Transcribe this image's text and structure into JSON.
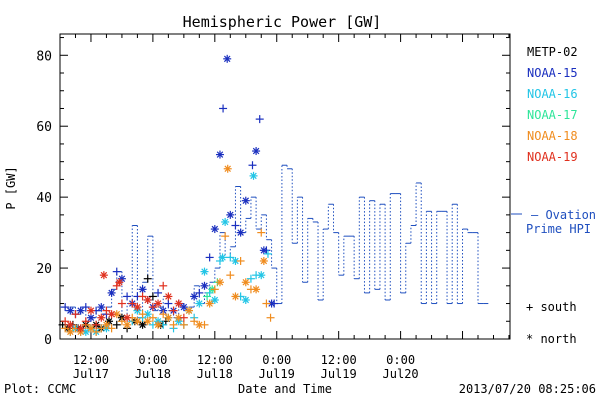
{
  "chart_data": {
    "type": "scatter",
    "title": "Hemispheric Power [GW]",
    "ylabel": "P [GW]",
    "xlabel": "Date and Time",
    "ylim": [
      0,
      86
    ],
    "xlim_hours_from_Jul17_00": [
      6.0,
      93.2
    ],
    "yticks": [
      0,
      20,
      40,
      60,
      80
    ],
    "xticks": [
      {
        "hour": 12,
        "line1": "12:00",
        "line2": "Jul17"
      },
      {
        "hour": 24,
        "line1": "0:00",
        "line2": "Jul18"
      },
      {
        "hour": 36,
        "line1": "12:00",
        "line2": "Jul18"
      },
      {
        "hour": 48,
        "line1": "0:00",
        "line2": "Jul19"
      },
      {
        "hour": 60,
        "line1": "12:00",
        "line2": "Jul19"
      },
      {
        "hour": 72,
        "line1": "0:00",
        "line2": "Jul20"
      }
    ],
    "legend": [
      {
        "name": "METP-02",
        "color": "#000000"
      },
      {
        "name": "NOAA-15",
        "color": "#1a2fbf"
      },
      {
        "name": "NOAA-16",
        "color": "#22c5e6"
      },
      {
        "name": "NOAA-17",
        "color": "#2ee59a"
      },
      {
        "name": "NOAA-18",
        "color": "#f08c1e"
      },
      {
        "name": "NOAA-19",
        "color": "#e0301e"
      }
    ],
    "ovation": {
      "label_line1": "— Ovation",
      "label_line2": "Prime HPI",
      "color": "#1f4fbf",
      "points": [
        [
          6,
          9
        ],
        [
          7,
          8
        ],
        [
          8,
          9
        ],
        [
          9,
          7
        ],
        [
          10,
          9
        ],
        [
          11,
          5
        ],
        [
          12,
          6
        ],
        [
          13,
          8
        ],
        [
          14,
          7
        ],
        [
          15,
          9
        ],
        [
          16,
          14
        ],
        [
          17,
          19
        ],
        [
          18,
          6
        ],
        [
          19,
          10
        ],
        [
          20,
          32
        ],
        [
          21,
          6
        ],
        [
          22,
          16
        ],
        [
          23,
          29
        ],
        [
          24,
          8
        ],
        [
          25,
          9
        ],
        [
          26,
          12
        ],
        [
          27,
          8
        ],
        [
          28,
          6
        ],
        [
          29,
          10
        ],
        [
          30,
          8
        ],
        [
          31,
          9
        ],
        [
          32,
          15
        ],
        [
          33,
          10
        ],
        [
          34,
          13
        ],
        [
          35,
          16
        ],
        [
          36,
          20
        ],
        [
          37,
          30
        ],
        [
          38,
          23
        ],
        [
          39,
          26
        ],
        [
          40,
          43
        ],
        [
          41,
          30
        ],
        [
          42,
          34
        ],
        [
          43,
          40
        ],
        [
          44,
          31
        ],
        [
          45,
          35
        ],
        [
          46,
          28
        ],
        [
          47,
          20
        ],
        [
          48,
          10
        ],
        [
          49,
          49
        ],
        [
          50,
          48
        ],
        [
          51,
          27
        ],
        [
          52,
          40
        ],
        [
          53,
          16
        ],
        [
          54,
          34
        ],
        [
          55,
          33
        ],
        [
          56,
          11
        ],
        [
          57,
          31
        ],
        [
          58,
          38
        ],
        [
          59,
          30
        ],
        [
          60,
          18
        ],
        [
          61,
          29
        ],
        [
          62,
          29
        ],
        [
          63,
          17
        ],
        [
          64,
          40
        ],
        [
          65,
          13
        ],
        [
          66,
          39
        ],
        [
          67,
          14
        ],
        [
          68,
          38
        ],
        [
          69,
          11
        ],
        [
          70,
          41
        ],
        [
          71,
          41
        ],
        [
          72,
          13
        ],
        [
          73,
          27
        ],
        [
          74,
          32
        ],
        [
          75,
          44
        ],
        [
          76,
          10
        ],
        [
          77,
          36
        ],
        [
          78,
          10
        ],
        [
          79,
          36
        ],
        [
          80,
          36
        ],
        [
          81,
          10
        ],
        [
          82,
          38
        ],
        [
          83,
          10
        ],
        [
          84,
          31
        ],
        [
          85,
          30
        ],
        [
          86,
          30
        ],
        [
          87,
          10
        ],
        [
          88,
          10
        ]
      ]
    },
    "series": [
      {
        "name": "METP-02",
        "color": "#000000",
        "points": [
          [
            6.5,
            4,
            "+"
          ],
          [
            7.5,
            3,
            "*"
          ],
          [
            8.5,
            4,
            "+"
          ],
          [
            9.5,
            3,
            "*"
          ],
          [
            11,
            4,
            "*"
          ],
          [
            12,
            3,
            "+"
          ],
          [
            13,
            4,
            "*"
          ],
          [
            14,
            3,
            "*"
          ],
          [
            15.5,
            5,
            "*"
          ],
          [
            17,
            4,
            "+"
          ],
          [
            18,
            6,
            "*"
          ],
          [
            19,
            3,
            "+"
          ],
          [
            20.5,
            5,
            "*"
          ],
          [
            22,
            4,
            "*"
          ],
          [
            23,
            17,
            "+"
          ],
          [
            24,
            12,
            "+"
          ],
          [
            25.5,
            4,
            "*"
          ],
          [
            26.5,
            5,
            "+"
          ]
        ]
      },
      {
        "name": "NOAA-15",
        "color": "#1a2fbf",
        "points": [
          [
            7,
            9,
            "+"
          ],
          [
            8,
            8,
            "*"
          ],
          [
            9,
            7,
            "+"
          ],
          [
            10,
            8,
            "*"
          ],
          [
            11,
            9,
            "+"
          ],
          [
            12,
            6,
            "*"
          ],
          [
            13,
            8,
            "+"
          ],
          [
            14,
            9,
            "*"
          ],
          [
            15,
            7,
            "+"
          ],
          [
            16,
            13,
            "*"
          ],
          [
            17,
            19,
            "+"
          ],
          [
            18,
            17,
            "*"
          ],
          [
            19,
            12,
            "+"
          ],
          [
            20,
            10,
            "*"
          ],
          [
            21,
            12,
            "+"
          ],
          [
            22,
            14,
            "*"
          ],
          [
            23,
            11,
            "+"
          ],
          [
            24,
            9,
            "*"
          ],
          [
            25,
            13,
            "+"
          ],
          [
            26,
            8,
            "*"
          ],
          [
            27,
            10,
            "+"
          ],
          [
            28,
            8,
            "*"
          ],
          [
            29,
            10,
            "+"
          ],
          [
            30,
            9,
            "*"
          ],
          [
            32,
            12,
            "*"
          ],
          [
            33,
            13,
            "+"
          ],
          [
            34,
            15,
            "*"
          ],
          [
            35,
            23,
            "+"
          ],
          [
            36,
            31,
            "*"
          ],
          [
            37,
            52,
            "*"
          ],
          [
            37.6,
            65,
            "+"
          ],
          [
            38.4,
            79,
            "*"
          ],
          [
            39,
            35,
            "*"
          ],
          [
            40,
            32,
            "+"
          ],
          [
            41,
            30,
            "*"
          ],
          [
            42,
            39,
            "*"
          ],
          [
            43.3,
            49,
            "+"
          ],
          [
            44,
            53,
            "*"
          ],
          [
            44.7,
            62,
            "+"
          ],
          [
            45.5,
            25,
            "*"
          ],
          [
            46,
            25,
            "+"
          ],
          [
            47,
            10,
            "*"
          ],
          [
            47.5,
            10,
            "+"
          ]
        ]
      },
      {
        "name": "NOAA-16",
        "color": "#22c5e6",
        "points": [
          [
            8,
            2,
            "+"
          ],
          [
            9,
            3,
            "*"
          ],
          [
            10,
            2,
            "+"
          ],
          [
            11,
            2,
            "*"
          ],
          [
            12,
            3,
            "+"
          ],
          [
            13,
            2,
            "*"
          ],
          [
            14,
            3,
            "+"
          ],
          [
            15,
            3,
            "*"
          ],
          [
            20,
            5,
            "+"
          ],
          [
            21,
            8,
            "*"
          ],
          [
            22,
            6,
            "+"
          ],
          [
            23,
            7,
            "*"
          ],
          [
            24,
            4,
            "+"
          ],
          [
            25,
            5,
            "*"
          ],
          [
            26,
            4,
            "+"
          ],
          [
            27,
            6,
            "*"
          ],
          [
            28,
            3,
            "+"
          ],
          [
            29,
            5,
            "*"
          ],
          [
            30,
            4,
            "+"
          ],
          [
            31,
            8,
            "*"
          ],
          [
            32,
            6,
            "+"
          ],
          [
            33,
            10,
            "*"
          ],
          [
            34,
            19,
            "*"
          ],
          [
            35,
            13,
            "+"
          ],
          [
            36,
            11,
            "*"
          ],
          [
            37,
            22,
            "+"
          ],
          [
            37.5,
            23,
            "*"
          ],
          [
            38,
            33,
            "*"
          ],
          [
            39,
            23,
            "+"
          ],
          [
            40,
            22,
            "*"
          ],
          [
            41,
            12,
            "+"
          ],
          [
            42,
            11,
            "*"
          ],
          [
            43,
            17,
            "+"
          ],
          [
            43.5,
            46,
            "*"
          ],
          [
            44,
            18,
            "+"
          ],
          [
            45,
            18,
            "*"
          ],
          [
            46.3,
            24,
            "+"
          ]
        ]
      },
      {
        "name": "NOAA-17",
        "color": "#2ee59a",
        "points": [
          [
            34.5,
            12,
            "+"
          ],
          [
            35.5,
            14,
            "*"
          ],
          [
            36.5,
            16,
            "+"
          ]
        ]
      },
      {
        "name": "NOAA-18",
        "color": "#f08c1e",
        "points": [
          [
            7,
            3,
            "+"
          ],
          [
            8,
            2,
            "*"
          ],
          [
            9,
            3,
            "+"
          ],
          [
            10,
            2,
            "*"
          ],
          [
            11,
            4,
            "+"
          ],
          [
            12,
            3,
            "*"
          ],
          [
            13,
            2,
            "+"
          ],
          [
            14,
            3,
            "+"
          ],
          [
            15,
            4,
            "*"
          ],
          [
            16,
            3,
            "+"
          ],
          [
            17,
            7,
            "*"
          ],
          [
            18,
            5,
            "+"
          ],
          [
            19,
            4,
            "*"
          ],
          [
            20,
            6,
            "+"
          ],
          [
            21,
            5,
            "*"
          ],
          [
            22,
            7,
            "+"
          ],
          [
            23,
            5,
            "*"
          ],
          [
            24,
            6,
            "+"
          ],
          [
            25,
            4,
            "*"
          ],
          [
            26,
            7,
            "+"
          ],
          [
            27,
            6,
            "*"
          ],
          [
            28,
            4,
            "+"
          ],
          [
            29,
            6,
            "*"
          ],
          [
            30,
            4,
            "+"
          ],
          [
            31,
            8,
            "*"
          ],
          [
            32,
            5,
            "+"
          ],
          [
            33,
            4,
            "*"
          ],
          [
            34,
            4,
            "+"
          ],
          [
            35,
            10,
            "*"
          ],
          [
            36,
            14,
            "+"
          ],
          [
            37,
            16,
            "*"
          ],
          [
            38,
            29,
            "+"
          ],
          [
            38.5,
            48,
            "*"
          ],
          [
            39,
            18,
            "+"
          ],
          [
            40,
            12,
            "*"
          ],
          [
            41,
            22,
            "+"
          ],
          [
            42,
            16,
            "*"
          ],
          [
            43,
            14,
            "+"
          ],
          [
            44,
            14,
            "*"
          ],
          [
            45,
            30,
            "+"
          ],
          [
            45.5,
            22,
            "*"
          ],
          [
            46,
            10,
            "+"
          ],
          [
            46.8,
            6,
            "+"
          ]
        ]
      },
      {
        "name": "NOAA-19",
        "color": "#e0301e",
        "points": [
          [
            7,
            5,
            "+"
          ],
          [
            8,
            4,
            "*"
          ],
          [
            9,
            7,
            "+"
          ],
          [
            10,
            3,
            "*"
          ],
          [
            11,
            5,
            "+"
          ],
          [
            12,
            8,
            "*"
          ],
          [
            13,
            4,
            "+"
          ],
          [
            14,
            6,
            "*"
          ],
          [
            15,
            8,
            "+"
          ],
          [
            16,
            7,
            "*"
          ],
          [
            17,
            15,
            "+"
          ],
          [
            17.5,
            16,
            "*"
          ],
          [
            18,
            10,
            "+"
          ],
          [
            19,
            6,
            "*"
          ],
          [
            20,
            10,
            "+"
          ],
          [
            21,
            9,
            "*"
          ],
          [
            22,
            12,
            "+"
          ],
          [
            23,
            11,
            "*"
          ],
          [
            24,
            9,
            "+"
          ],
          [
            25,
            10,
            "*"
          ],
          [
            26,
            15,
            "+"
          ],
          [
            27,
            12,
            "*"
          ],
          [
            28,
            8,
            "+"
          ],
          [
            29,
            10,
            "*"
          ],
          [
            30,
            6,
            "+"
          ],
          [
            14.5,
            18,
            "*"
          ]
        ]
      }
    ],
    "marker_legend": [
      {
        "symbol": "+",
        "label": "south"
      },
      {
        "symbol": "*",
        "label": "north"
      }
    ]
  },
  "footer": {
    "left": "Plot: CCMC",
    "right": "2013/07/20 08:25:06"
  }
}
